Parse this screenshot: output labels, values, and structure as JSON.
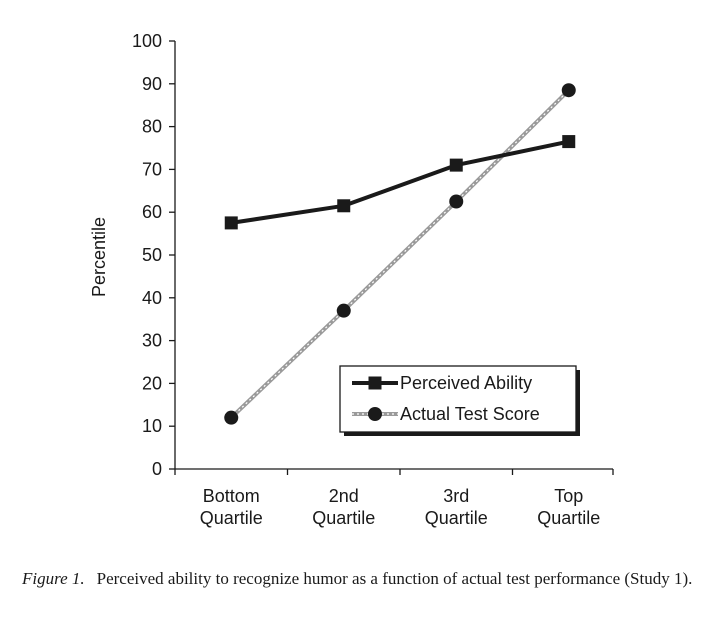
{
  "chart_data": {
    "type": "line",
    "title": "",
    "xlabel": "",
    "ylabel": "Percentile",
    "ylim": [
      0,
      100
    ],
    "yticks": [
      0,
      10,
      20,
      30,
      40,
      50,
      60,
      70,
      80,
      90,
      100
    ],
    "ytick_labels": [
      "0",
      "10",
      "20",
      "30",
      "40",
      "50",
      "60",
      "70",
      "80",
      "90",
      "100"
    ],
    "categories": [
      [
        "Bottom",
        "Quartile"
      ],
      [
        "2nd",
        "Quartile"
      ],
      [
        "3rd",
        "Quartile"
      ],
      [
        "Top",
        "Quartile"
      ]
    ],
    "grid": false,
    "legend_position": "lower-right",
    "series": [
      {
        "name": "Perceived Ability",
        "values": [
          57.5,
          61.5,
          71,
          76.5
        ],
        "marker": "square",
        "color": "#1a1a1a",
        "style": "solid"
      },
      {
        "name": "Actual Test Score",
        "values": [
          12,
          37,
          62.5,
          88.5
        ],
        "marker": "circle",
        "color": "#9a9a9a",
        "marker_color": "#1a1a1a",
        "style": "dotted-gray"
      }
    ]
  },
  "caption": {
    "label": "Figure 1.",
    "text": "Perceived ability to recognize humor as a function of actual test performance (Study 1)."
  }
}
